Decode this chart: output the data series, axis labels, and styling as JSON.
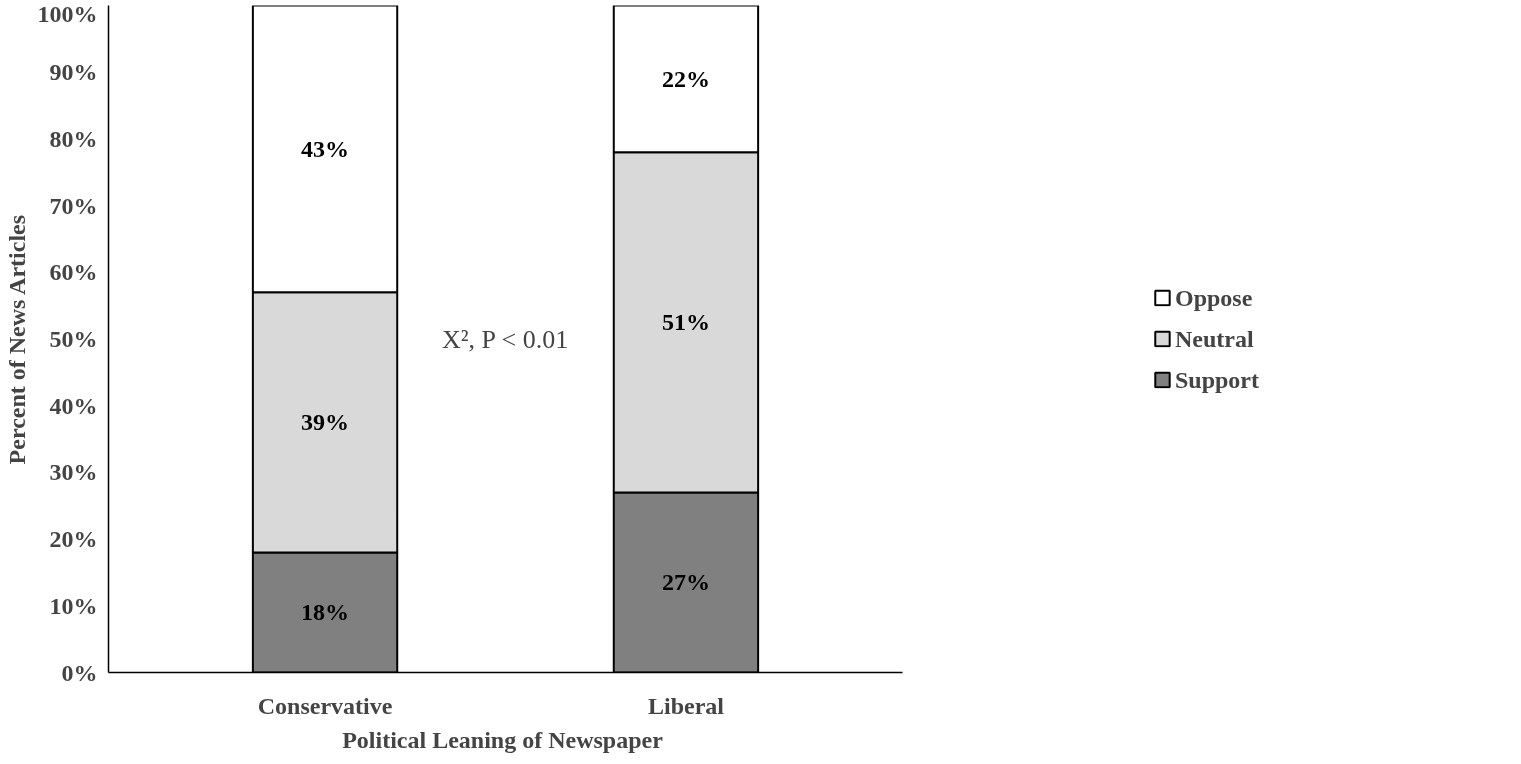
{
  "chart_data": {
    "type": "bar",
    "stacked": true,
    "xlabel": "Political  Leaning of Newspaper",
    "ylabel": "Percent of News Articles",
    "categories": [
      "Conservative",
      "Liberal"
    ],
    "series": [
      {
        "name": "Support",
        "color": "#808080",
        "values": [
          18,
          27
        ],
        "value_labels": [
          "18%",
          "27%"
        ]
      },
      {
        "name": "Neutral",
        "color": "#d9d9d9",
        "values": [
          39,
          51
        ],
        "value_labels": [
          "39%",
          "51%"
        ]
      },
      {
        "name": "Oppose",
        "color": "#ffffff",
        "values": [
          43,
          22
        ],
        "value_labels": [
          "43%",
          "22%"
        ]
      }
    ],
    "ylim": [
      0,
      100
    ],
    "yticks": [
      {
        "value": 0,
        "label": "0%"
      },
      {
        "value": 10,
        "label": "10%"
      },
      {
        "value": 20,
        "label": "20%"
      },
      {
        "value": 30,
        "label": "30%"
      },
      {
        "value": 40,
        "label": "40%"
      },
      {
        "value": 50,
        "label": "50%"
      },
      {
        "value": 60,
        "label": "60%"
      },
      {
        "value": 70,
        "label": "70%"
      },
      {
        "value": 80,
        "label": "80%"
      },
      {
        "value": 90,
        "label": "90%"
      },
      {
        "value": 100,
        "label": "100%"
      }
    ],
    "annotations": [
      "X², P < 0.01"
    ],
    "grid": false,
    "legend": "right"
  }
}
